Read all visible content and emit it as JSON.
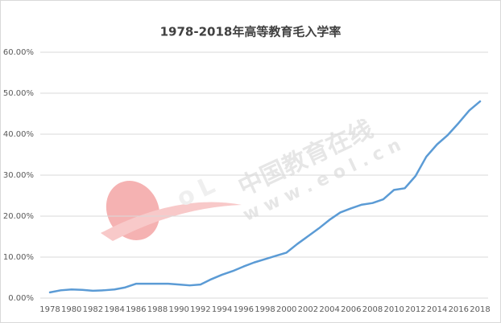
{
  "chart_data": {
    "type": "line",
    "title": "1978-2018年高等教育毛入学率",
    "categories": [
      "1978",
      null,
      "1980",
      null,
      "1982",
      null,
      "1984",
      null,
      "1986",
      null,
      "1988",
      null,
      "1990",
      null,
      "1992",
      null,
      "1994",
      null,
      "1996",
      null,
      "1998",
      null,
      "2000",
      null,
      "2002",
      null,
      "2004",
      null,
      "2006",
      null,
      "2008",
      null,
      "2010",
      null,
      "2012",
      null,
      "2014",
      null,
      "2016",
      null,
      "2018"
    ],
    "series": [
      {
        "name": "高等教育毛入学率",
        "color": "#5b9bd5",
        "values": [
          1.4,
          1.9,
          2.1,
          2.0,
          1.8,
          1.9,
          2.1,
          2.6,
          3.5,
          3.5,
          3.5,
          3.5,
          3.3,
          3.1,
          3.3,
          4.6,
          5.7,
          6.6,
          7.7,
          8.7,
          9.5,
          10.3,
          11.1,
          13.2,
          15.1,
          17.0,
          19.1,
          20.9,
          21.9,
          22.8,
          23.2,
          24.1,
          26.4,
          26.8,
          29.8,
          34.5,
          37.5,
          39.8,
          42.7,
          45.8,
          48.0
        ]
      }
    ],
    "ylim": [
      0,
      60
    ],
    "yticks": [
      {
        "value": 0,
        "label": "0.00%"
      },
      {
        "value": 10,
        "label": "10.00%"
      },
      {
        "value": 20,
        "label": "20.00%"
      },
      {
        "value": 30,
        "label": "30.00%"
      },
      {
        "value": 40,
        "label": "40.00%"
      },
      {
        "value": 50,
        "label": "50.00%"
      },
      {
        "value": 60,
        "label": "60.00%"
      }
    ],
    "grid": true,
    "watermark": "中国教育在线",
    "watermark_url": "w w w . e o l . c n"
  }
}
